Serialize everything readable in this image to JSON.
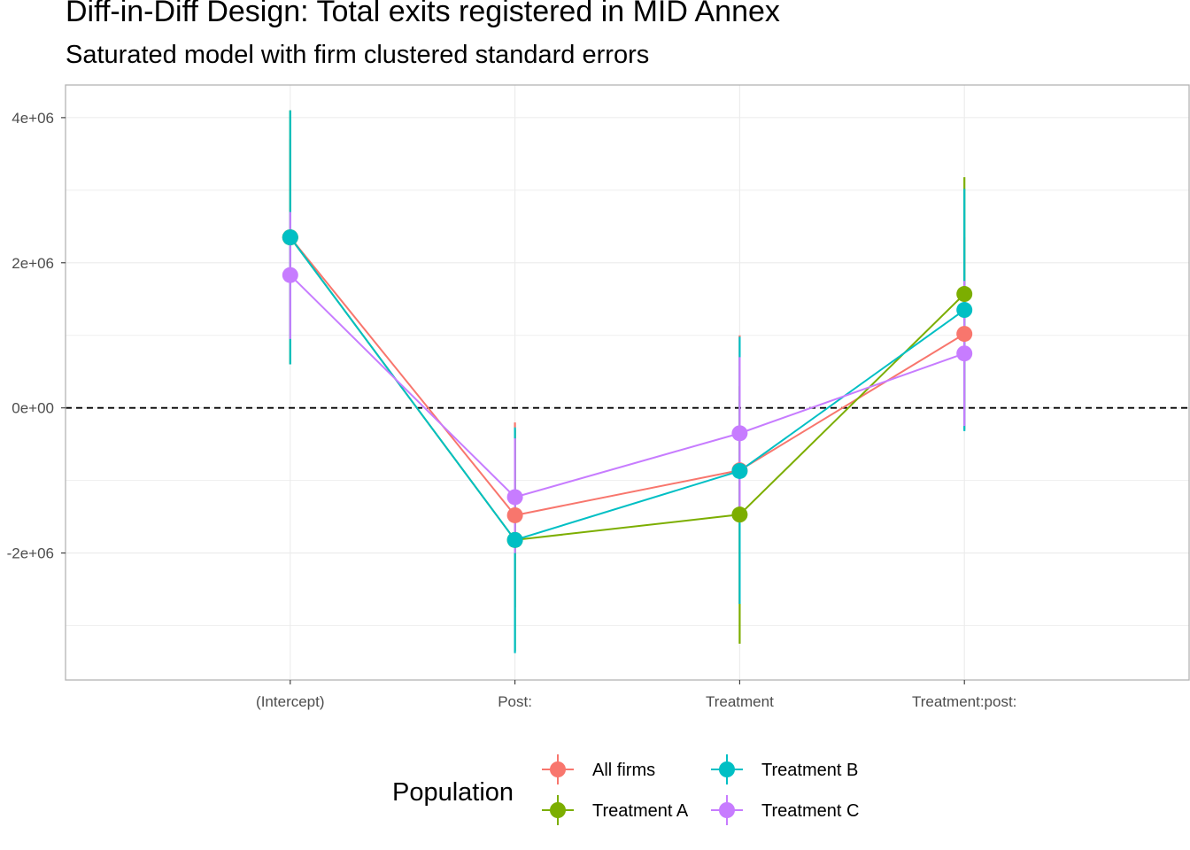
{
  "chart_data": {
    "type": "line",
    "title": "Diff-in-Diff Design: Total exits registered in MID Annex",
    "subtitle": "Saturated model with firm clustered standard errors",
    "xlabel": "",
    "ylabel": "",
    "categories": [
      "(Intercept)",
      "Post:",
      "Treatment",
      "Treatment:post:"
    ],
    "ylim": [
      -3750000,
      4450000
    ],
    "yticks": [
      4000000,
      2000000,
      0,
      -2000000
    ],
    "ytick_labels": [
      "4e+06",
      "2e+06",
      "0e+00",
      "-2e+06"
    ],
    "reference_line": {
      "y": 0,
      "style": "dashed"
    },
    "grid": true,
    "legend": {
      "title": "Population",
      "position": "bottom"
    },
    "series": [
      {
        "name": "All firms",
        "color": "#F8766D",
        "values": [
          2350000,
          -1480000,
          -860000,
          1020000
        ],
        "lower": [
          950000,
          -2750000,
          -2700000,
          -300000
        ],
        "upper": [
          3700000,
          -200000,
          1000000,
          2350000
        ]
      },
      {
        "name": "Treatment A",
        "color": "#7CAE00",
        "values": [
          2350000,
          -1820000,
          -1470000,
          1570000
        ],
        "lower": [
          600000,
          -3350000,
          -3250000,
          -30000
        ],
        "upper": [
          4100000,
          -300000,
          300000,
          3180000
        ]
      },
      {
        "name": "Treatment B",
        "color": "#00BFC4",
        "values": [
          2350000,
          -1820000,
          -870000,
          1350000
        ],
        "lower": [
          600000,
          -3380000,
          -2700000,
          -320000
        ],
        "upper": [
          4100000,
          -270000,
          980000,
          3020000
        ]
      },
      {
        "name": "Treatment C",
        "color": "#C77CFF",
        "values": [
          1830000,
          -1230000,
          -350000,
          750000
        ],
        "lower": [
          950000,
          -2000000,
          -1400000,
          -250000
        ],
        "upper": [
          2700000,
          -420000,
          700000,
          1750000
        ]
      }
    ]
  }
}
